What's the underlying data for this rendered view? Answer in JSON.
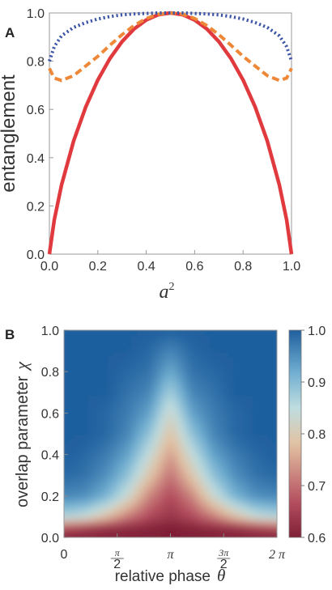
{
  "chart_data": [
    {
      "panel": "A",
      "type": "line",
      "xlabel": "a",
      "xlabel_superscript": "2",
      "ylabel": "entanglement",
      "xlim": [
        0,
        1
      ],
      "ylim": [
        0,
        1
      ],
      "xticks": [
        "0.0",
        "0.2",
        "0.4",
        "0.6",
        "0.8",
        "1.0"
      ],
      "yticks": [
        "0.0",
        "0.2",
        "0.4",
        "0.6",
        "0.8",
        "1.0"
      ],
      "series": [
        {
          "style": "solid",
          "color": "#e03a3e",
          "x": [
            0.0,
            0.02,
            0.05,
            0.1,
            0.15,
            0.2,
            0.25,
            0.3,
            0.35,
            0.4,
            0.45,
            0.5,
            0.55,
            0.6,
            0.65,
            0.7,
            0.75,
            0.8,
            0.85,
            0.9,
            0.95,
            0.98,
            1.0
          ],
          "y": [
            0.0,
            0.141,
            0.286,
            0.469,
            0.61,
            0.722,
            0.811,
            0.881,
            0.934,
            0.971,
            0.993,
            1.0,
            0.993,
            0.971,
            0.934,
            0.881,
            0.811,
            0.722,
            0.61,
            0.469,
            0.286,
            0.141,
            0.0
          ]
        },
        {
          "style": "dashed",
          "color": "#ee8838",
          "x": [
            0.0,
            0.02,
            0.05,
            0.1,
            0.15,
            0.2,
            0.25,
            0.3,
            0.35,
            0.4,
            0.45,
            0.5,
            0.55,
            0.6,
            0.65,
            0.7,
            0.75,
            0.8,
            0.85,
            0.9,
            0.95,
            0.98,
            1.0
          ],
          "y": [
            0.77,
            0.73,
            0.72,
            0.74,
            0.78,
            0.82,
            0.866,
            0.91,
            0.948,
            0.977,
            0.995,
            1.0,
            0.995,
            0.977,
            0.948,
            0.91,
            0.866,
            0.82,
            0.78,
            0.74,
            0.72,
            0.73,
            0.77
          ]
        },
        {
          "style": "dotted",
          "color": "#3d55a6",
          "x": [
            0.0,
            0.02,
            0.05,
            0.1,
            0.15,
            0.2,
            0.25,
            0.3,
            0.35,
            0.4,
            0.45,
            0.5,
            0.55,
            0.6,
            0.65,
            0.7,
            0.75,
            0.8,
            0.85,
            0.9,
            0.95,
            0.98,
            1.0
          ],
          "y": [
            0.8,
            0.86,
            0.905,
            0.94,
            0.96,
            0.975,
            0.985,
            0.992,
            0.996,
            0.998,
            1.0,
            1.0,
            1.0,
            0.998,
            0.996,
            0.992,
            0.985,
            0.975,
            0.96,
            0.94,
            0.905,
            0.86,
            0.8
          ]
        }
      ]
    },
    {
      "panel": "B",
      "type": "heatmap",
      "xlabel": "relative phase",
      "xlabel_symbol": "θ",
      "ylabel": "overlap parameter",
      "ylabel_symbol": "χ",
      "xlim": [
        0,
        6.2832
      ],
      "ylim": [
        0,
        1
      ],
      "xticks": [
        {
          "value": 0,
          "label": "0"
        },
        {
          "value": 1.5708,
          "num": "π",
          "den": "2"
        },
        {
          "value": 3.1416,
          "label": "π"
        },
        {
          "value": 4.7124,
          "num": "3π",
          "den": "2"
        },
        {
          "value": 6.2832,
          "label": "2 π"
        }
      ],
      "yticks": [
        "0.0",
        "0.2",
        "0.4",
        "0.6",
        "0.8",
        "1.0"
      ],
      "colorbar": {
        "range": [
          0.6,
          1.0
        ],
        "ticks": [
          "0.6",
          "0.7",
          "0.8",
          "0.9",
          "1.0"
        ],
        "colors": [
          "#7f1f36",
          "#b65060",
          "#e2c2a2",
          "#bfdde0",
          "#6fadd0",
          "#1f5f9e"
        ],
        "stops": [
          0.6,
          0.67,
          0.78,
          0.85,
          0.92,
          1.0
        ]
      },
      "grid_x": [
        0,
        0.6283,
        1.2566,
        1.885,
        2.5133,
        3.1416,
        3.7699,
        4.3982,
        5.0265,
        5.6549,
        6.2832
      ],
      "grid_y": [
        0.0,
        0.05,
        0.1,
        0.2,
        0.3,
        0.4,
        0.5,
        0.6,
        0.7,
        0.8,
        0.9,
        1.0
      ],
      "z": [
        [
          0.6,
          0.6,
          0.6,
          0.6,
          0.6,
          0.6,
          0.6,
          0.6,
          0.6,
          0.6,
          0.6
        ],
        [
          0.67,
          0.65,
          0.63,
          0.62,
          0.61,
          0.6,
          0.61,
          0.62,
          0.63,
          0.65,
          0.67
        ],
        [
          0.86,
          0.84,
          0.78,
          0.71,
          0.66,
          0.63,
          0.66,
          0.71,
          0.78,
          0.84,
          0.86
        ],
        [
          0.96,
          0.95,
          0.91,
          0.83,
          0.72,
          0.66,
          0.72,
          0.83,
          0.91,
          0.95,
          0.96
        ],
        [
          0.99,
          0.98,
          0.95,
          0.89,
          0.79,
          0.7,
          0.79,
          0.89,
          0.95,
          0.98,
          0.99
        ],
        [
          1.0,
          0.99,
          0.97,
          0.93,
          0.84,
          0.74,
          0.84,
          0.93,
          0.97,
          0.99,
          1.0
        ],
        [
          1.0,
          1.0,
          0.99,
          0.96,
          0.89,
          0.78,
          0.89,
          0.96,
          0.99,
          1.0,
          1.0
        ],
        [
          1.0,
          1.0,
          0.99,
          0.97,
          0.93,
          0.82,
          0.93,
          0.97,
          0.99,
          1.0,
          1.0
        ],
        [
          1.0,
          1.0,
          1.0,
          0.98,
          0.96,
          0.87,
          0.96,
          0.98,
          1.0,
          1.0,
          1.0
        ],
        [
          1.0,
          1.0,
          1.0,
          0.99,
          0.98,
          0.92,
          0.98,
          0.99,
          1.0,
          1.0,
          1.0
        ],
        [
          1.0,
          1.0,
          1.0,
          1.0,
          0.99,
          0.96,
          0.99,
          1.0,
          1.0,
          1.0,
          1.0
        ],
        [
          1.0,
          1.0,
          1.0,
          1.0,
          1.0,
          1.0,
          1.0,
          1.0,
          1.0,
          1.0,
          1.0
        ]
      ]
    }
  ]
}
